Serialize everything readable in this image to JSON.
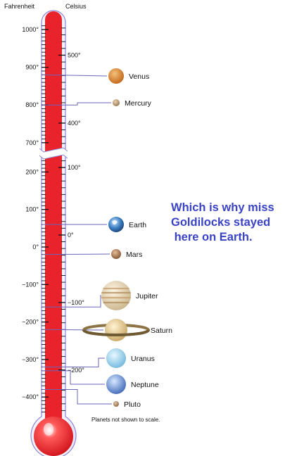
{
  "units": {
    "fahrenheit": "Fahrenheit",
    "celsius": "Celsius"
  },
  "caption": [
    "Which is why miss",
    "Goldilocks stayed",
    " here on Earth."
  ],
  "note": "Planets not shown to scale.",
  "colors": {
    "mercury_red": "#e8232b",
    "tube_outline": "#8b86d8",
    "leader": "#6a65b8",
    "caption": "#3a43c4"
  },
  "fahrenheit_upper": [
    {
      "label": "1000°",
      "value": 1000
    },
    {
      "label": "900°",
      "value": 900
    },
    {
      "label": "800°",
      "value": 800
    },
    {
      "label": "700°",
      "value": 700
    }
  ],
  "celsius_upper": [
    {
      "label": "500°",
      "value": 500
    },
    {
      "label": "400°",
      "value": 400
    }
  ],
  "fahrenheit_lower": [
    {
      "label": "200°",
      "value": 200
    },
    {
      "label": "100°",
      "value": 100
    },
    {
      "label": "0°",
      "value": 0
    },
    {
      "label": "−100°",
      "value": -100
    },
    {
      "label": "−200°",
      "value": -200
    },
    {
      "label": "−300°",
      "value": -300
    },
    {
      "label": "−400°",
      "value": -400
    }
  ],
  "celsius_lower": [
    {
      "label": "100°",
      "value": 100
    },
    {
      "label": "0°",
      "value": 0
    },
    {
      "label": "−100°",
      "value": -100
    },
    {
      "label": "−200°",
      "value": -200
    }
  ],
  "planets": [
    {
      "name": "Venus",
      "scale": "upper",
      "temp_f": 880,
      "icon": "venus-icon"
    },
    {
      "name": "Mercury",
      "scale": "upper",
      "temp_f": 800,
      "icon": "mercury-icon"
    },
    {
      "name": "Earth",
      "scale": "lower",
      "temp_f": 60,
      "icon": "earth-icon"
    },
    {
      "name": "Mars",
      "scale": "lower",
      "temp_f": -20,
      "icon": "mars-icon"
    },
    {
      "name": "Jupiter",
      "scale": "lower",
      "temp_f": -160,
      "icon": "jupiter-icon"
    },
    {
      "name": "Saturn",
      "scale": "lower",
      "temp_f": -220,
      "icon": "saturn-icon"
    },
    {
      "name": "Uranus",
      "scale": "lower",
      "temp_f": -320,
      "icon": "uranus-icon"
    },
    {
      "name": "Neptune",
      "scale": "lower",
      "temp_f": -330,
      "icon": "neptune-icon"
    },
    {
      "name": "Pluto",
      "scale": "lower",
      "temp_f": -380,
      "icon": "pluto-icon"
    }
  ]
}
